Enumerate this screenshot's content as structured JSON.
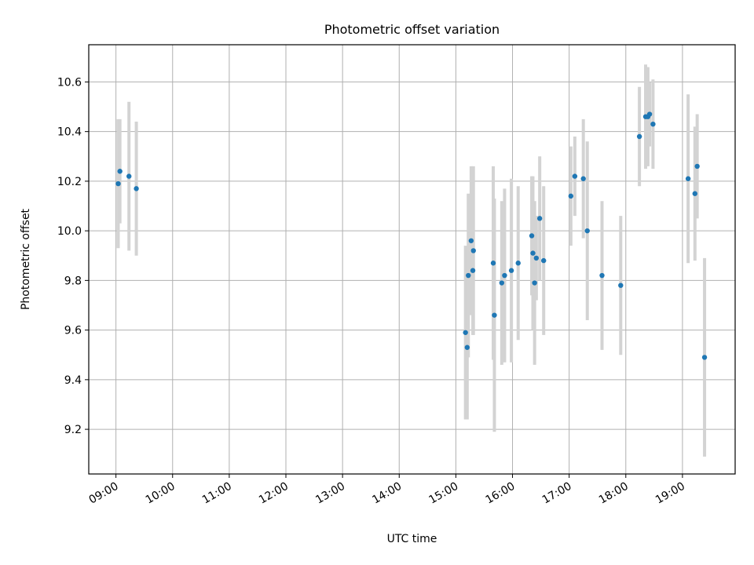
{
  "chart_data": {
    "type": "scatter",
    "title": "Photometric offset variation",
    "xlabel": "UTC time",
    "ylabel": "Photometric offset",
    "grid": true,
    "xlim": [
      8.52,
      19.93
    ],
    "ylim": [
      9.02,
      10.75
    ],
    "x_ticks": [
      9,
      10,
      11,
      12,
      13,
      14,
      15,
      16,
      17,
      18,
      19
    ],
    "x_tick_labels": [
      "09:00",
      "10:00",
      "11:00",
      "12:00",
      "13:00",
      "14:00",
      "15:00",
      "16:00",
      "17:00",
      "18:00",
      "19:00"
    ],
    "y_ticks": [
      9.2,
      9.4,
      9.6,
      9.8,
      10.0,
      10.2,
      10.4,
      10.6
    ],
    "y_tick_labels": [
      "9.2",
      "9.4",
      "9.6",
      "9.8",
      "10.0",
      "10.2",
      "10.4",
      "10.6"
    ],
    "colors": {
      "point": "#1f77b4",
      "errorbar": "#d3d3d3",
      "grid": "#b0b0b0"
    },
    "series": [
      {
        "name": "offset",
        "points": [
          {
            "x": 9.04,
            "y": 10.19,
            "yerr": 0.26
          },
          {
            "x": 9.07,
            "y": 10.24,
            "yerr": 0.21
          },
          {
            "x": 9.23,
            "y": 10.22,
            "yerr": 0.3
          },
          {
            "x": 9.36,
            "y": 10.17,
            "yerr": 0.27
          },
          {
            "x": 15.17,
            "y": 9.59,
            "yerr": 0.35
          },
          {
            "x": 15.2,
            "y": 9.53,
            "yerr": 0.29
          },
          {
            "x": 15.22,
            "y": 9.82,
            "yerr": 0.33
          },
          {
            "x": 15.27,
            "y": 9.96,
            "yerr": 0.3
          },
          {
            "x": 15.3,
            "y": 9.84,
            "yerr": 0.26
          },
          {
            "x": 15.31,
            "y": 9.92,
            "yerr": 0.34
          },
          {
            "x": 15.66,
            "y": 9.87,
            "yerr": 0.39
          },
          {
            "x": 15.68,
            "y": 9.66,
            "yerr": 0.47
          },
          {
            "x": 15.81,
            "y": 9.79,
            "yerr": 0.33
          },
          {
            "x": 15.86,
            "y": 9.82,
            "yerr": 0.35
          },
          {
            "x": 15.98,
            "y": 9.84,
            "yerr": 0.37
          },
          {
            "x": 16.1,
            "y": 9.87,
            "yerr": 0.31
          },
          {
            "x": 16.34,
            "y": 9.98,
            "yerr": 0.24
          },
          {
            "x": 16.36,
            "y": 9.91,
            "yerr": 0.31
          },
          {
            "x": 16.39,
            "y": 9.79,
            "yerr": 0.33
          },
          {
            "x": 16.42,
            "y": 9.89,
            "yerr": 0.17
          },
          {
            "x": 16.48,
            "y": 10.05,
            "yerr": 0.25
          },
          {
            "x": 16.55,
            "y": 9.88,
            "yerr": 0.3
          },
          {
            "x": 17.03,
            "y": 10.14,
            "yerr": 0.2
          },
          {
            "x": 17.1,
            "y": 10.22,
            "yerr": 0.16
          },
          {
            "x": 17.25,
            "y": 10.21,
            "yerr": 0.24
          },
          {
            "x": 17.32,
            "y": 10.0,
            "yerr": 0.36
          },
          {
            "x": 17.58,
            "y": 9.82,
            "yerr": 0.3
          },
          {
            "x": 17.91,
            "y": 9.78,
            "yerr": 0.28
          },
          {
            "x": 18.24,
            "y": 10.38,
            "yerr": 0.2
          },
          {
            "x": 18.35,
            "y": 10.46,
            "yerr": 0.21
          },
          {
            "x": 18.39,
            "y": 10.46,
            "yerr": 0.2
          },
          {
            "x": 18.42,
            "y": 10.47,
            "yerr": 0.13
          },
          {
            "x": 18.48,
            "y": 10.43,
            "yerr": 0.18
          },
          {
            "x": 19.1,
            "y": 10.21,
            "yerr": 0.34
          },
          {
            "x": 19.22,
            "y": 10.15,
            "yerr": 0.27
          },
          {
            "x": 19.26,
            "y": 10.26,
            "yerr": 0.21
          },
          {
            "x": 19.39,
            "y": 9.49,
            "yerr": 0.4
          }
        ]
      }
    ]
  }
}
